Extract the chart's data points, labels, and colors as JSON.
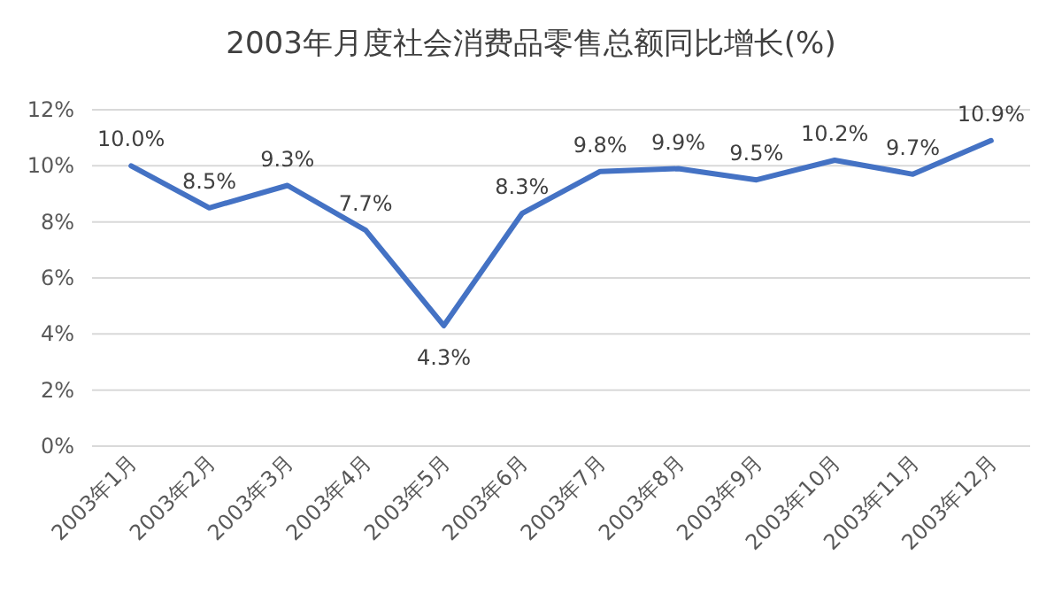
{
  "chart_data": {
    "type": "line",
    "title": "2003年月度社会消费品零售总额同比增长(%)",
    "categories": [
      "2003年1月",
      "2003年2月",
      "2003年3月",
      "2003年4月",
      "2003年5月",
      "2003年6月",
      "2003年7月",
      "2003年8月",
      "2003年9月",
      "2003年10月",
      "2003年11月",
      "2003年12月"
    ],
    "series": [
      {
        "color": "#4472c4",
        "values": [
          10.0,
          8.5,
          9.3,
          7.7,
          4.3,
          8.3,
          9.8,
          9.9,
          9.5,
          10.2,
          9.7,
          10.9
        ],
        "value_labels": [
          "10.0%",
          "8.5%",
          "9.3%",
          "7.7%",
          "4.3%",
          "8.3%",
          "9.8%",
          "9.9%",
          "9.5%",
          "10.2%",
          "9.7%",
          "10.9%"
        ]
      }
    ],
    "ylim": [
      0,
      12
    ],
    "yticks": [
      {
        "value": 0,
        "label": "0%"
      },
      {
        "value": 2,
        "label": "2%"
      },
      {
        "value": 4,
        "label": "4%"
      },
      {
        "value": 6,
        "label": "6%"
      },
      {
        "value": 8,
        "label": "8%"
      },
      {
        "value": 10,
        "label": "10%"
      },
      {
        "value": 12,
        "label": "12%"
      }
    ],
    "grid": "y",
    "marker": "none",
    "line_style": "solid"
  }
}
